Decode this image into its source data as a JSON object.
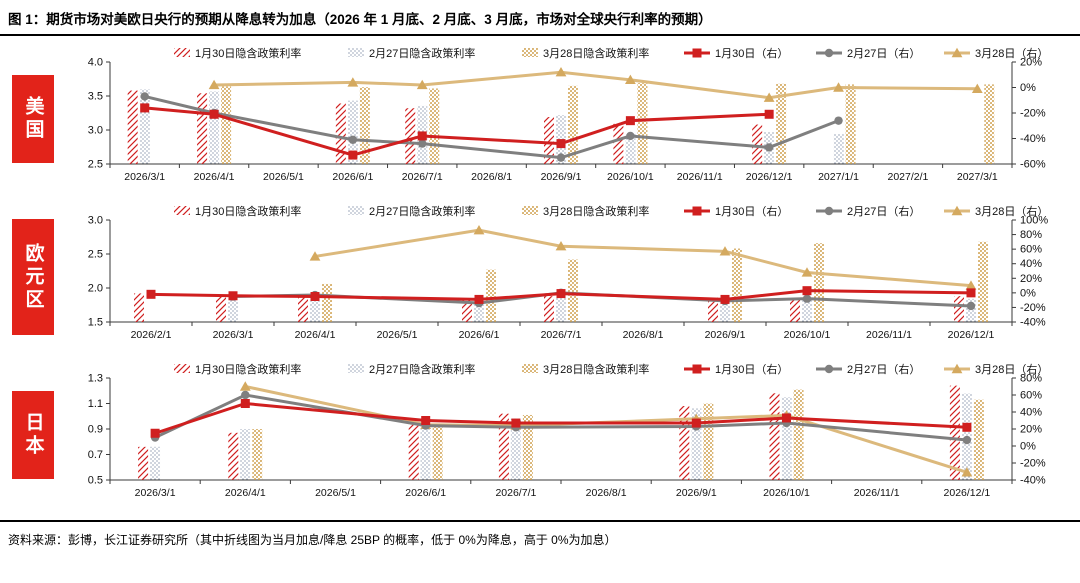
{
  "page": {
    "title": "图 1：期货市场对美欧日央行的预期从降息转为加息（2026 年 1 月底、2 月底、3 月底，市场对全球央行利率的预期）",
    "source_note": "资料来源：彭博，长江证券研究所（其中折线图为当月加息/降息 25BP 的概率，低于 0%为降息，高于 0%为加息）"
  },
  "colors": {
    "red": "#d01f1f",
    "gray": "#7f7f7f",
    "gold": "#d4a95f",
    "gold_line": "#dcb97c",
    "dot": "#6d7c96",
    "sidebar_red": "#e2231a",
    "axis": "#3a3a3a"
  },
  "legend": {
    "bars": [
      "1月30日隐含政策利率",
      "2月27日隐含政策利率",
      "3月28日隐含政策利率"
    ],
    "lines": [
      "1月30日（右）",
      "2月27日（右）",
      "3月28日（右）"
    ]
  },
  "chart_data": [
    {
      "type": "bar+line",
      "region_label": "美国",
      "note": "bars = implied policy rate (left axis, %); lines = probability of 25bp hike/cut at that month's meeting (right axis, %)",
      "categories": [
        "2026/3/1",
        "2026/4/1",
        "2026/5/1",
        "2026/6/1",
        "2026/7/1",
        "2026/8/1",
        "2026/9/1",
        "2026/10/1",
        "2026/11/1",
        "2026/12/1",
        "2027/1/1",
        "2027/2/1",
        "2027/3/1"
      ],
      "left_axis": {
        "min": 2.5,
        "max": 4.0,
        "ticks": [
          4.0,
          3.5,
          3.0,
          2.5
        ]
      },
      "right_axis": {
        "min": -60,
        "max": 20,
        "ticks": [
          20,
          0,
          -20,
          -40,
          -60
        ]
      },
      "bar_series": [
        {
          "name": "1月30日隐含政策利率",
          "values": [
            3.58,
            3.54,
            null,
            3.39,
            3.32,
            null,
            3.19,
            3.09,
            null,
            3.08,
            null,
            null,
            null
          ]
        },
        {
          "name": "2月27日隐含政策利率",
          "values": [
            3.6,
            3.57,
            null,
            3.43,
            3.36,
            null,
            3.22,
            2.95,
            null,
            2.97,
            2.94,
            null,
            null
          ]
        },
        {
          "name": "3月28日隐含政策利率",
          "values": [
            null,
            3.64,
            null,
            3.63,
            3.61,
            null,
            3.65,
            3.69,
            null,
            3.68,
            3.67,
            null,
            3.67
          ]
        }
      ],
      "line_series": [
        {
          "name": "1月30日（右）",
          "values": [
            -16,
            -21,
            null,
            -53,
            -38,
            null,
            -44,
            -26,
            null,
            -21,
            null,
            null,
            null
          ]
        },
        {
          "name": "2月27日（右）",
          "values": [
            -7,
            -20,
            null,
            -41,
            -44,
            null,
            -55,
            -38,
            null,
            -47,
            -26,
            null,
            null
          ]
        },
        {
          "name": "3月28日（右）",
          "values": [
            null,
            2,
            null,
            4,
            2,
            null,
            12,
            6,
            null,
            -8,
            0,
            null,
            -1
          ]
        }
      ]
    },
    {
      "type": "bar+line",
      "region_label": "欧元区",
      "note": "bars = implied policy rate (left axis, %); lines = probability of 25bp hike/cut at that month's meeting (right axis, %)",
      "categories": [
        "2026/2/1",
        "2026/3/1",
        "2026/4/1",
        "2026/5/1",
        "2026/6/1",
        "2026/7/1",
        "2026/8/1",
        "2026/9/1",
        "2026/10/1",
        "2026/11/1",
        "2026/12/1"
      ],
      "left_axis": {
        "min": 1.5,
        "max": 3.0,
        "ticks": [
          3.0,
          2.5,
          2.0,
          1.5
        ]
      },
      "right_axis": {
        "min": -40,
        "max": 100,
        "ticks": [
          100,
          80,
          60,
          40,
          20,
          0,
          -20,
          -40
        ]
      },
      "bar_series": [
        {
          "name": "1月30日隐含政策利率",
          "values": [
            1.92,
            1.88,
            1.87,
            null,
            1.84,
            1.88,
            null,
            1.86,
            1.84,
            null,
            1.88
          ]
        },
        {
          "name": "2月27日隐含政策利率",
          "values": [
            null,
            1.85,
            1.86,
            null,
            1.8,
            1.92,
            null,
            1.85,
            1.83,
            null,
            1.84
          ]
        },
        {
          "name": "3月28日隐含政策利率",
          "values": [
            null,
            null,
            2.06,
            null,
            2.27,
            2.42,
            null,
            2.58,
            2.66,
            null,
            2.68
          ]
        }
      ],
      "line_series": [
        {
          "name": "1月30日（右）",
          "values": [
            -2,
            -4,
            -5,
            null,
            -9,
            -1,
            null,
            -9,
            3,
            null,
            0
          ]
        },
        {
          "name": "2月27日（右）",
          "values": [
            null,
            -5,
            -3,
            null,
            -14,
            0,
            null,
            -11,
            -8,
            null,
            -18
          ]
        },
        {
          "name": "3月28日（右）",
          "values": [
            null,
            null,
            50,
            null,
            86,
            64,
            null,
            57,
            28,
            null,
            10
          ]
        }
      ]
    },
    {
      "type": "bar+line",
      "region_label": "日本",
      "note": "bars = implied policy rate (left axis, %); lines = probability of 25bp hike/cut at that month's meeting (right axis, %)",
      "categories": [
        "2026/3/1",
        "2026/4/1",
        "2026/5/1",
        "2026/6/1",
        "2026/7/1",
        "2026/8/1",
        "2026/9/1",
        "2026/10/1",
        "2026/11/1",
        "2026/12/1"
      ],
      "left_axis": {
        "min": 0.5,
        "max": 1.3,
        "ticks": [
          1.3,
          1.1,
          0.9,
          0.7,
          0.5
        ]
      },
      "right_axis": {
        "min": -40,
        "max": 80,
        "ticks": [
          80,
          60,
          40,
          20,
          0,
          -20,
          -40
        ]
      },
      "bar_series": [
        {
          "name": "1月30日隐含政策利率",
          "values": [
            0.76,
            0.87,
            null,
            0.95,
            1.02,
            null,
            1.08,
            1.18,
            null,
            1.24
          ]
        },
        {
          "name": "2月27日隐含政策利率",
          "values": [
            0.76,
            0.9,
            null,
            0.9,
            0.98,
            null,
            1.06,
            1.15,
            null,
            1.18
          ]
        },
        {
          "name": "3月28日隐含政策利率",
          "values": [
            null,
            0.9,
            null,
            0.92,
            1.01,
            null,
            1.1,
            1.21,
            null,
            1.13
          ]
        }
      ],
      "line_series": [
        {
          "name": "1月30日（右）",
          "values": [
            15,
            50,
            null,
            30,
            27,
            null,
            27,
            33,
            null,
            22
          ]
        },
        {
          "name": "2月27日（右）",
          "values": [
            10,
            60,
            null,
            24,
            22,
            null,
            23,
            27,
            null,
            7
          ]
        },
        {
          "name": "3月28日（右）",
          "values": [
            null,
            70,
            null,
            25,
            24,
            null,
            32,
            36,
            null,
            -31
          ]
        }
      ]
    }
  ]
}
